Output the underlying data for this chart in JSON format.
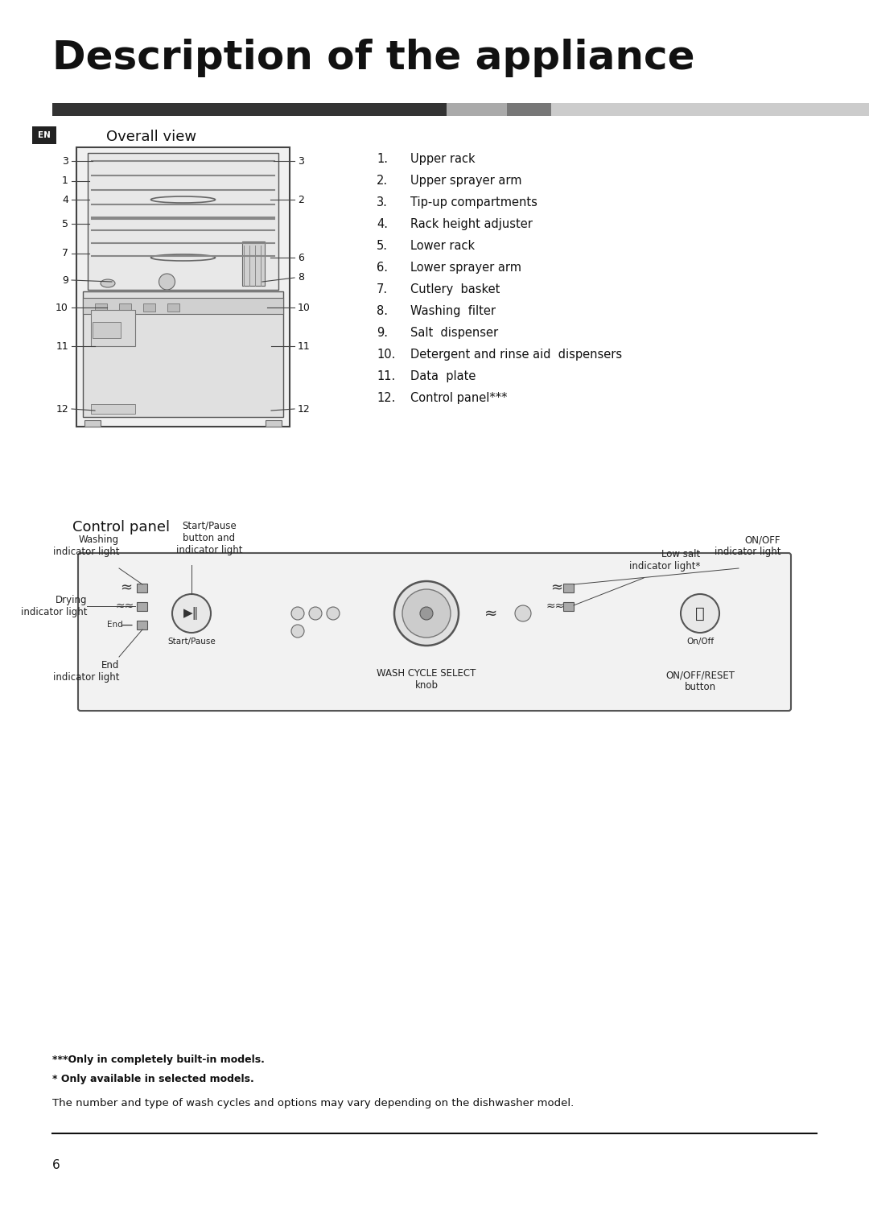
{
  "title": "Description of the appliance",
  "title_fontsize": 36,
  "bg_color": "#ffffff",
  "header_bar_color1": "#333333",
  "header_bar_color2": "#aaaaaa",
  "header_bar_color3": "#777777",
  "header_bar_color4": "#cccccc",
  "section1_label": "Overall view",
  "en_label": "EN",
  "numbered_items": [
    "Upper rack",
    "Upper sprayer arm",
    "Tip-up compartments",
    "Rack height adjuster",
    "Lower rack",
    "Lower sprayer arm",
    "Cutlery  basket",
    "Washing  filter",
    "Salt  dispenser",
    "Detergent and rinse aid  dispensers",
    "Data  plate",
    "Control panel***"
  ],
  "section2_label": "Control panel",
  "footnote1": "***Only in completely built-in models.",
  "footnote2": "* Only available in selected models.",
  "footnote3": "The number and type of wash cycles and options may vary depending on the dishwasher model.",
  "page_number": "6"
}
